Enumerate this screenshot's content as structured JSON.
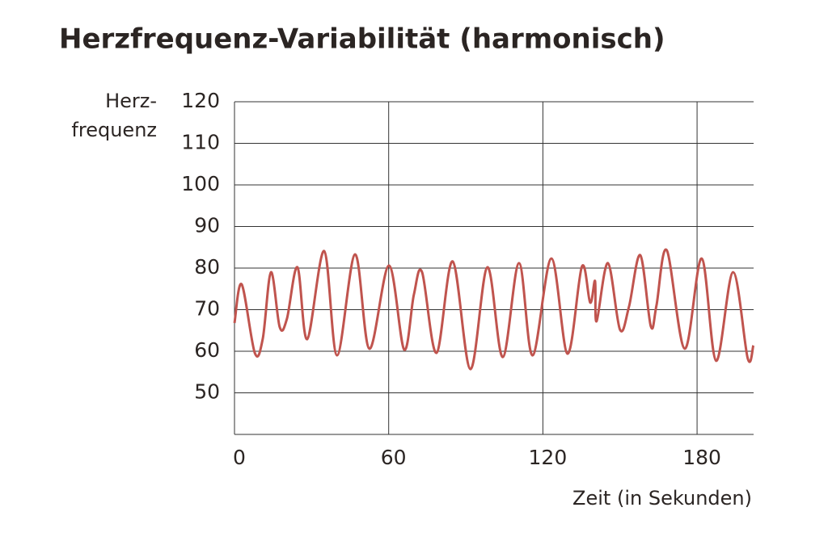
{
  "chart_data": {
    "type": "line",
    "title": "Herzfrequenz-Variabilität (harmonisch)",
    "y_label": [
      "Herz-",
      "frequenz"
    ],
    "x_label": "Zeit (in Sekunden)",
    "x": [
      0,
      2.8,
      7.9,
      11,
      14.2,
      17.6,
      20.4,
      24.5,
      28.3,
      34.9,
      39.9,
      46.9,
      52.5,
      60.1,
      66,
      69.8,
      73,
      78.6,
      84.9,
      91.8,
      98.4,
      104.4,
      110.7,
      116,
      123.3,
      129.6,
      135.2,
      138.4,
      140.3,
      140.9,
      145.3,
      150,
      153.5,
      157.9,
      162,
      164.2,
      168.2,
      175.2,
      181.8,
      187.4,
      194,
      199.7,
      201.9
    ],
    "series": [
      {
        "name": "Herzfrequenz",
        "color": "#c0544e",
        "values": [
          66.8,
          76.1,
          59.6,
          63,
          79,
          65.8,
          67.8,
          80.2,
          62.9,
          84.1,
          59,
          83.3,
          60.6,
          80.6,
          60.4,
          73.6,
          79,
          59.6,
          81.6,
          55.7,
          80.2,
          58.6,
          81.2,
          59,
          82.3,
          59.4,
          80.4,
          71.7,
          76.9,
          67.2,
          81.2,
          65.2,
          70.7,
          83.1,
          66,
          71,
          84.3,
          60.6,
          82.3,
          57.7,
          79,
          58.3,
          61.4
        ]
      }
    ],
    "xlim": [
      0,
      202
    ],
    "ylim": [
      40,
      120
    ],
    "xticks": [
      0,
      60,
      120,
      180
    ],
    "yticks": [
      50,
      60,
      70,
      80,
      90,
      100,
      110,
      120
    ],
    "grid": true
  }
}
